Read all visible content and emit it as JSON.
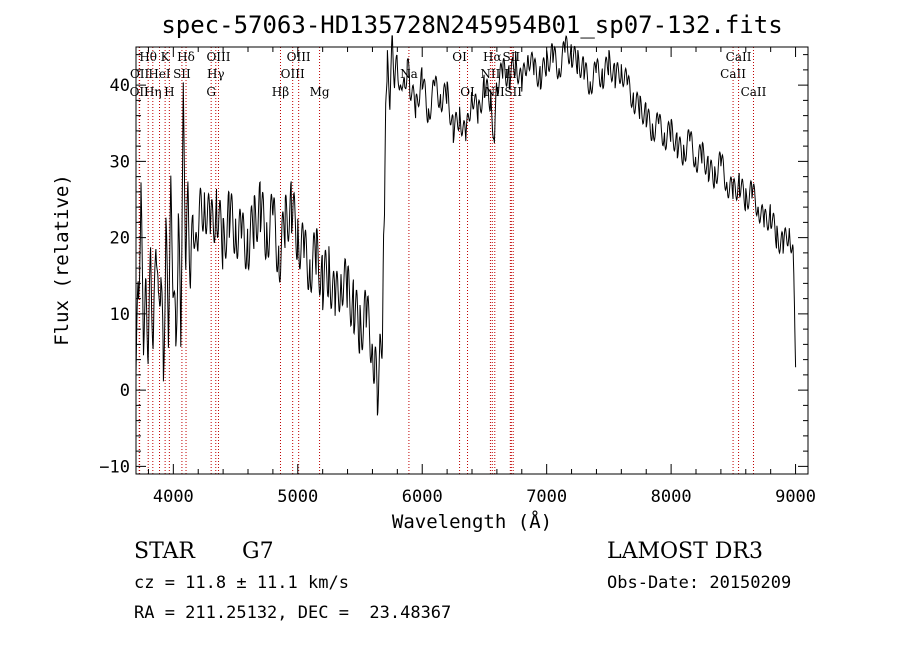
{
  "chart_data": {
    "type": "line",
    "title": "spec-57063-HD135728N245954B01_sp07-132.fits",
    "xlabel": "Wavelength (Å)",
    "ylabel": "Flux (relative)",
    "xlim": [
      3700,
      9100
    ],
    "ylim": [
      -11,
      45
    ],
    "xticks": [
      4000,
      5000,
      6000,
      7000,
      8000,
      9000
    ],
    "yticks": [
      -10,
      0,
      10,
      20,
      30,
      40
    ],
    "series": [
      {
        "name": "spectrum",
        "x": [
          3700,
          3720,
          3740,
          3760,
          3780,
          3800,
          3820,
          3840,
          3860,
          3880,
          3900,
          3920,
          3940,
          3960,
          3980,
          4000,
          4020,
          4040,
          4060,
          4080,
          4100,
          4120,
          4140,
          4160,
          4180,
          4200,
          4250,
          4300,
          4350,
          4400,
          4450,
          4500,
          4550,
          4600,
          4650,
          4700,
          4750,
          4800,
          4850,
          4900,
          4950,
          5000,
          5050,
          5100,
          5150,
          5200,
          5250,
          5300,
          5350,
          5400,
          5450,
          5500,
          5550,
          5600,
          5620,
          5640,
          5660,
          5680,
          5690,
          5700,
          5710,
          5720,
          5740,
          5760,
          5780,
          5800,
          5820,
          5840,
          5860,
          5880,
          5900,
          5950,
          6000,
          6050,
          6100,
          6150,
          6200,
          6250,
          6300,
          6350,
          6400,
          6450,
          6500,
          6550,
          6580,
          6600,
          6650,
          6700,
          6750,
          6800,
          6850,
          6900,
          6950,
          7000,
          7050,
          7100,
          7150,
          7200,
          7250,
          7300,
          7350,
          7400,
          7450,
          7500,
          7550,
          7600,
          7650,
          7700,
          7750,
          7800,
          7850,
          7900,
          7950,
          8000,
          8050,
          8100,
          8150,
          8200,
          8250,
          8300,
          8350,
          8400,
          8450,
          8500,
          8550,
          8600,
          8650,
          8700,
          8750,
          8800,
          8850,
          8900,
          8950,
          8980,
          9000
        ],
        "y": [
          2,
          14,
          24,
          8,
          12,
          6,
          18,
          4,
          22,
          10,
          16,
          2,
          20,
          9,
          25,
          14,
          6,
          21,
          9,
          37,
          18,
          25,
          14,
          24,
          17,
          22,
          25,
          21,
          24,
          19,
          23,
          21,
          20,
          19,
          22,
          24,
          20,
          23,
          17,
          22,
          24,
          20,
          18,
          16,
          18,
          14,
          16,
          11,
          15,
          13,
          11,
          8,
          10,
          6,
          3,
          0,
          4,
          8,
          20,
          28,
          40,
          43,
          38,
          46,
          40,
          44,
          38,
          41,
          39,
          43,
          40,
          37,
          41,
          36,
          40,
          38,
          39,
          34,
          36,
          33,
          39,
          36,
          40,
          38,
          33,
          40,
          42,
          41,
          43,
          40,
          44,
          42,
          41,
          43,
          44,
          42,
          45,
          44,
          43,
          42,
          40,
          42,
          41,
          43,
          41,
          42,
          40,
          38,
          37,
          36,
          34,
          35,
          33,
          34,
          32,
          31,
          33,
          30,
          31,
          29,
          28,
          30,
          27,
          26,
          27,
          25,
          26,
          24,
          22,
          23,
          20,
          19,
          21,
          18,
          3
        ]
      }
    ],
    "line_markers": [
      {
        "wavelength": 3726,
        "label": "OII",
        "row": 3
      },
      {
        "wavelength": 3729,
        "label": "OII",
        "row": 2
      },
      {
        "wavelength": 3798,
        "label": "Hθ",
        "row": 1
      },
      {
        "wavelength": 3835,
        "label": "Hη",
        "row": 3
      },
      {
        "wavelength": 3889,
        "label": "HeI",
        "row": 2
      },
      {
        "wavelength": 3934,
        "label": "K",
        "row": 1
      },
      {
        "wavelength": 3968,
        "label": "H",
        "row": 3
      },
      {
        "wavelength": 4069,
        "label": "SII",
        "row": 2
      },
      {
        "wavelength": 4102,
        "label": "Hδ",
        "row": 1
      },
      {
        "wavelength": 4304,
        "label": "G",
        "row": 3
      },
      {
        "wavelength": 4341,
        "label": "Hγ",
        "row": 2
      },
      {
        "wavelength": 4363,
        "label": "OIII",
        "row": 1
      },
      {
        "wavelength": 4861,
        "label": "Hβ",
        "row": 3
      },
      {
        "wavelength": 4959,
        "label": "OIII",
        "row": 2
      },
      {
        "wavelength": 5007,
        "label": "OIII",
        "row": 1
      },
      {
        "wavelength": 5175,
        "label": "Mg",
        "row": 3
      },
      {
        "wavelength": 5893,
        "label": "Na",
        "row": 2
      },
      {
        "wavelength": 6300,
        "label": "OI",
        "row": 1
      },
      {
        "wavelength": 6364,
        "label": "OI",
        "row": 3
      },
      {
        "wavelength": 6548,
        "label": "NII",
        "row": 2
      },
      {
        "wavelength": 6563,
        "label": "Hα",
        "row": 1
      },
      {
        "wavelength": 6583,
        "label": "NII",
        "row": 3
      },
      {
        "wavelength": 6708,
        "label": "Li",
        "row": 2
      },
      {
        "wavelength": 6716,
        "label": "SII",
        "row": 1
      },
      {
        "wavelength": 6731,
        "label": "SII",
        "row": 3
      },
      {
        "wavelength": 8498,
        "label": "CaII",
        "row": 2
      },
      {
        "wavelength": 8542,
        "label": "CaII",
        "row": 1
      },
      {
        "wavelength": 8662,
        "label": "CaII",
        "row": 3
      }
    ],
    "colors": {
      "spectrum": "#000000",
      "line_markers": "#c00000",
      "axes": "#000000"
    }
  },
  "info": {
    "class_label": "STAR",
    "subclass": "G7",
    "cz": "cz = 11.8 ± 11.1 km/s",
    "radec": "RA = 211.25132, DEC =  23.48367",
    "survey": "LAMOST DR3",
    "obs_date": "Obs-Date: 20150209"
  }
}
